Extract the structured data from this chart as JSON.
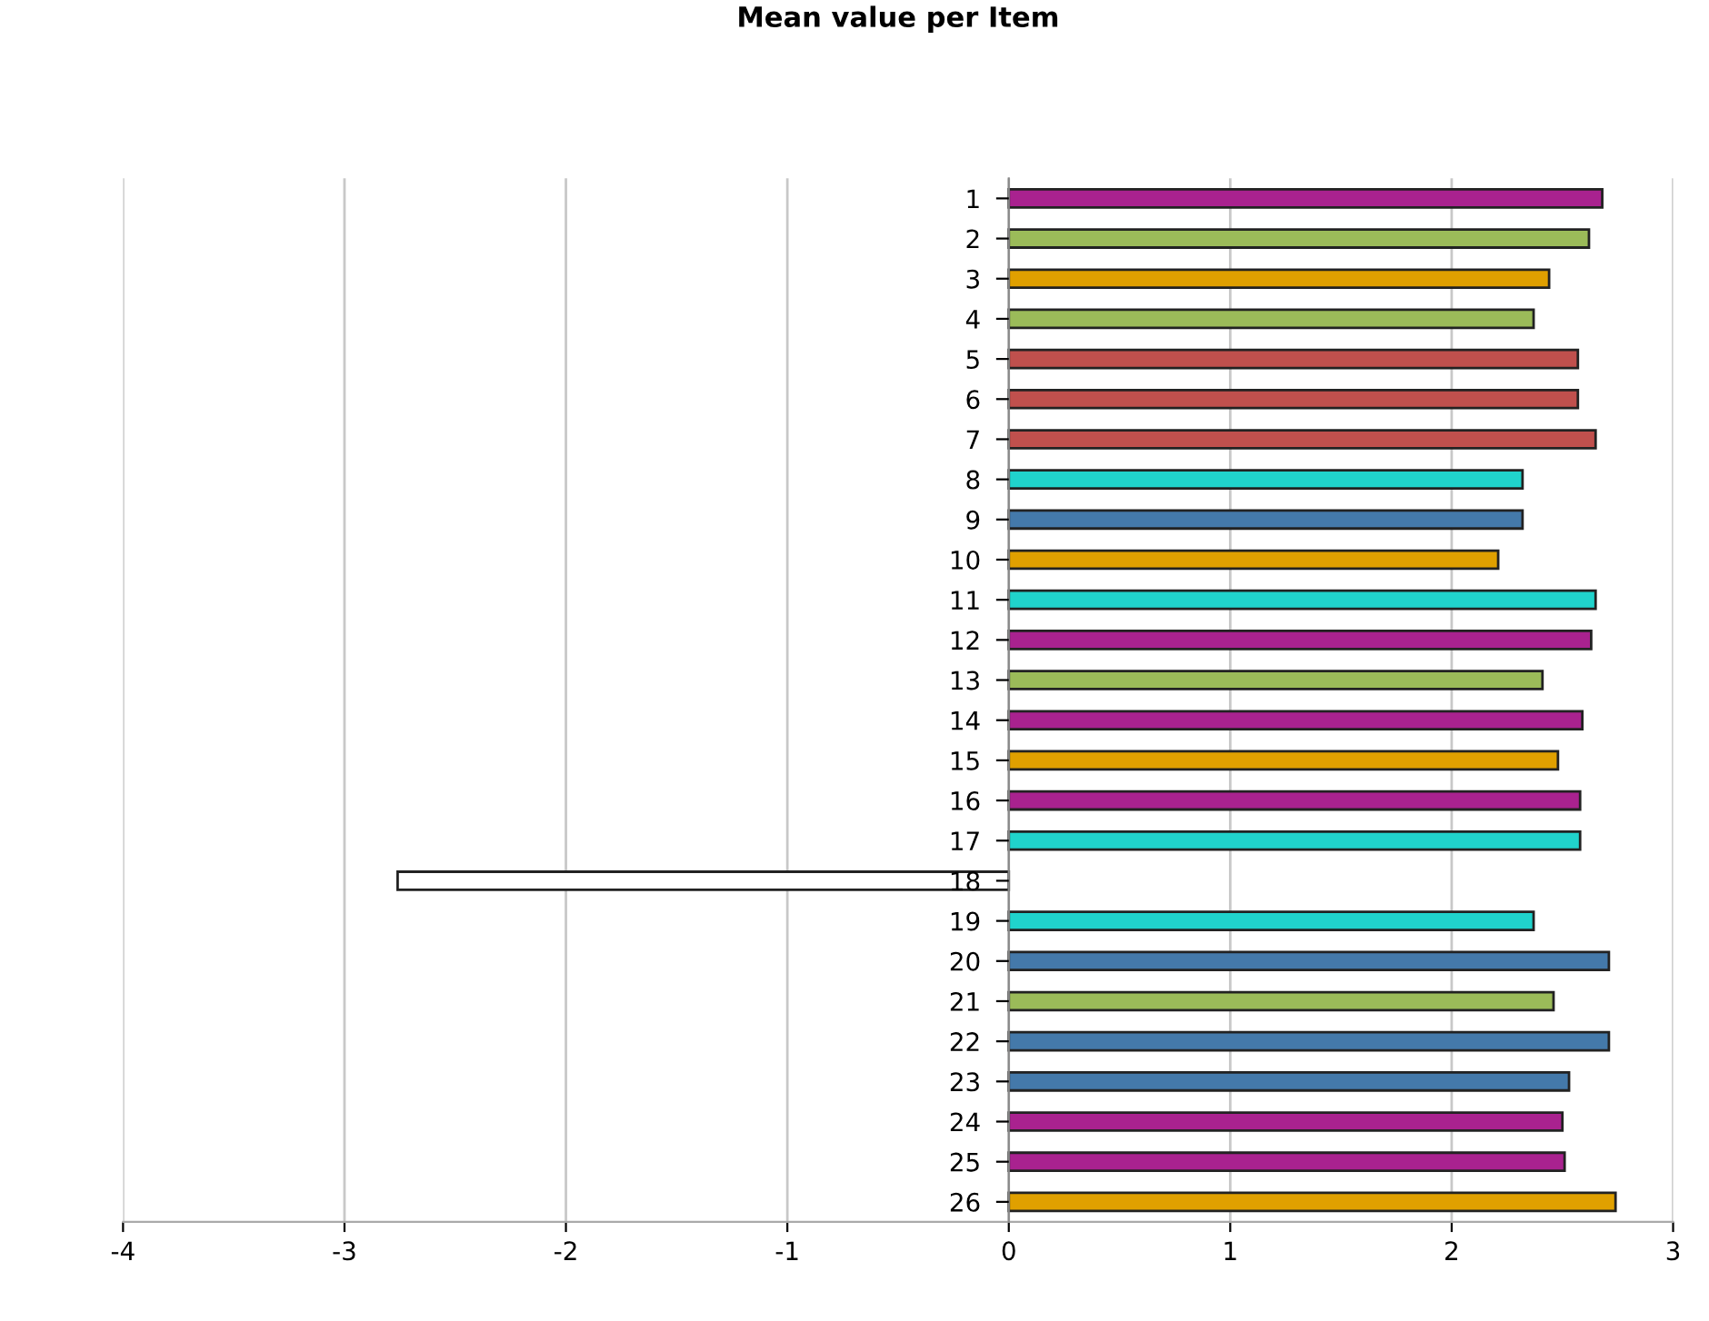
{
  "chart_data": {
    "type": "bar",
    "orientation": "horizontal",
    "title": "Mean value per Item",
    "categories": [
      "1",
      "2",
      "3",
      "4",
      "5",
      "6",
      "7",
      "8",
      "9",
      "10",
      "11",
      "12",
      "13",
      "14",
      "15",
      "16",
      "17",
      "18",
      "19",
      "20",
      "21",
      "22",
      "23",
      "24",
      "25",
      "26"
    ],
    "values": [
      2.68,
      2.62,
      2.44,
      2.37,
      2.57,
      2.57,
      2.65,
      2.32,
      2.32,
      2.21,
      2.65,
      2.63,
      2.41,
      2.59,
      2.48,
      2.58,
      2.58,
      -2.76,
      2.37,
      2.71,
      2.46,
      2.71,
      2.53,
      2.5,
      2.51,
      2.74
    ],
    "colors": [
      "#a9228f",
      "#9bbb59",
      "#e0a000",
      "#9bbb59",
      "#c0504d",
      "#c0504d",
      "#c0504d",
      "#20d3cc",
      "#4479aa",
      "#e0a000",
      "#20d3cc",
      "#a9228f",
      "#9bbb59",
      "#a9228f",
      "#e0a000",
      "#a9228f",
      "#20d3cc",
      "#ffffff",
      "#20d3cc",
      "#4479aa",
      "#9bbb59",
      "#4479aa",
      "#4479aa",
      "#a9228f",
      "#a9228f",
      "#e0a000"
    ],
    "xlim": [
      -4,
      3
    ],
    "xticks": [
      -4,
      -3,
      -2,
      -1,
      0,
      1,
      2,
      3
    ],
    "grid": "x"
  }
}
